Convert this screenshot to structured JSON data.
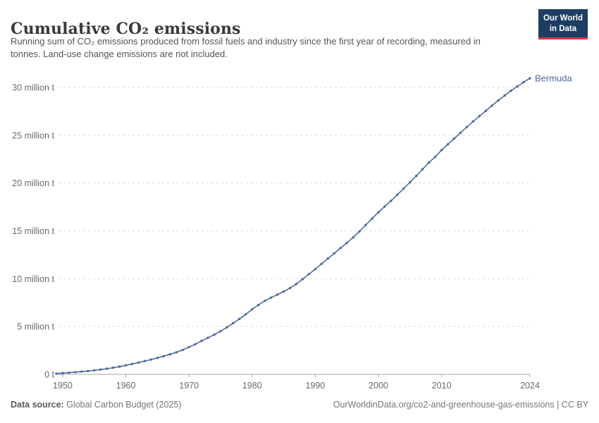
{
  "header": {
    "title": "Cumulative CO₂ emissions",
    "subtitle": "Running sum of CO₂ emissions produced from fossil fuels and industry since the first year of recording, measured in tonnes. Land-use change emissions are not included."
  },
  "logo": {
    "line1": "Our World",
    "line2": "in Data",
    "bg_color": "#1d3d63",
    "accent_color": "#e5353f"
  },
  "chart_data": {
    "type": "line",
    "title": "Cumulative CO₂ emissions",
    "xlabel": "",
    "ylabel": "",
    "values_unit": "million tonnes",
    "grid": true,
    "legend_style": "end-of-line label",
    "x_range": [
      1949,
      2024
    ],
    "y_range_million_t": [
      0,
      31
    ],
    "x_ticks": [
      1950,
      1960,
      1970,
      1980,
      1990,
      2000,
      2010,
      2024
    ],
    "y_ticks": [
      {
        "value_million_t": 0,
        "label": "0 t"
      },
      {
        "value_million_t": 5,
        "label": "5 million t"
      },
      {
        "value_million_t": 10,
        "label": "10 million t"
      },
      {
        "value_million_t": 15,
        "label": "15 million t"
      },
      {
        "value_million_t": 20,
        "label": "20 million t"
      },
      {
        "value_million_t": 25,
        "label": "25 million t"
      },
      {
        "value_million_t": 30,
        "label": "30 million t"
      }
    ],
    "series": [
      {
        "name": "Bermuda",
        "color": "#4c6a9c",
        "years": [
          1949,
          1950,
          1951,
          1952,
          1953,
          1954,
          1955,
          1956,
          1957,
          1958,
          1959,
          1960,
          1961,
          1962,
          1963,
          1964,
          1965,
          1966,
          1967,
          1968,
          1969,
          1970,
          1971,
          1972,
          1973,
          1974,
          1975,
          1976,
          1977,
          1978,
          1979,
          1980,
          1981,
          1982,
          1983,
          1984,
          1985,
          1986,
          1987,
          1988,
          1989,
          1990,
          1991,
          1992,
          1993,
          1994,
          1995,
          1996,
          1997,
          1998,
          1999,
          2000,
          2001,
          2002,
          2003,
          2004,
          2005,
          2006,
          2007,
          2008,
          2009,
          2010,
          2011,
          2012,
          2013,
          2014,
          2015,
          2016,
          2017,
          2018,
          2019,
          2020,
          2021,
          2022,
          2023,
          2024
        ],
        "values_million_t": [
          0.08,
          0.13,
          0.18,
          0.23,
          0.29,
          0.35,
          0.42,
          0.5,
          0.59,
          0.69,
          0.81,
          0.94,
          1.08,
          1.23,
          1.39,
          1.55,
          1.72,
          1.9,
          2.09,
          2.3,
          2.55,
          2.85,
          3.15,
          3.5,
          3.82,
          4.15,
          4.5,
          4.92,
          5.35,
          5.8,
          6.28,
          6.8,
          7.25,
          7.68,
          8.02,
          8.34,
          8.66,
          9.02,
          9.45,
          9.95,
          10.48,
          11.0,
          11.55,
          12.1,
          12.65,
          13.2,
          13.75,
          14.32,
          14.95,
          15.62,
          16.28,
          16.95,
          17.55,
          18.15,
          18.78,
          19.42,
          20.08,
          20.75,
          21.45,
          22.15,
          22.75,
          23.45,
          24.05,
          24.65,
          25.25,
          25.85,
          26.45,
          27.0,
          27.55,
          28.1,
          28.65,
          29.15,
          29.65,
          30.1,
          30.55,
          30.95
        ]
      }
    ],
    "colors": {
      "line": "#4c6a9c",
      "gridline": "#d9d9d9",
      "axis": "#a6a6a6",
      "tick_label": "#696969",
      "entity_label": "#4c6a9c"
    }
  },
  "footer": {
    "source_label": "Data source:",
    "source_text": " Global Carbon Budget (2025)",
    "link_text": "OurWorldinData.org/co2-and-greenhouse-gas-emissions | CC BY"
  }
}
